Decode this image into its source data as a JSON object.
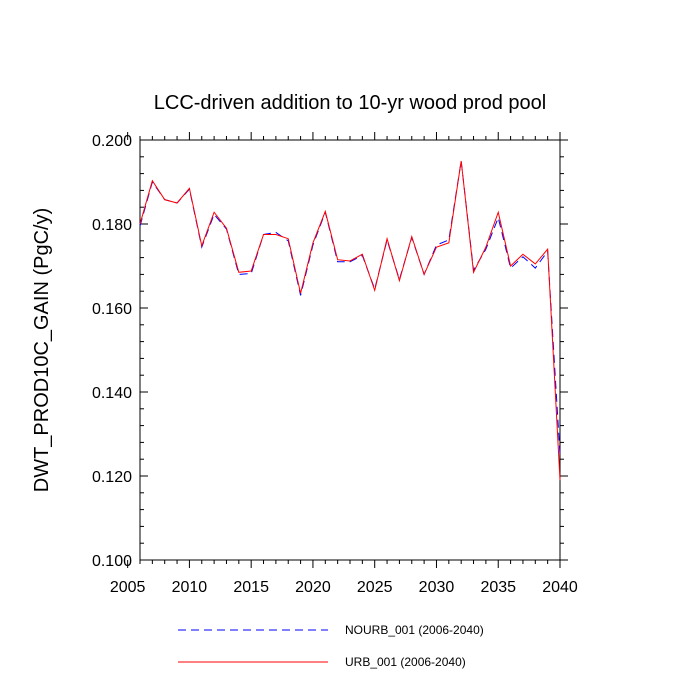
{
  "chart_data": {
    "type": "line",
    "title": "LCC-driven addition to 10-yr wood prod pool",
    "xlabel": "",
    "ylabel": "DWT_PROD10C_GAIN  (PgC/y)",
    "xlim": [
      2006,
      2040
    ],
    "ylim": [
      0.1,
      0.2
    ],
    "grid": false,
    "legend_position": "bottom",
    "x_ticks": [
      2005,
      2010,
      2015,
      2020,
      2025,
      2030,
      2035,
      2040
    ],
    "x_tick_labels": [
      "2005",
      "2010",
      "2015",
      "2020",
      "2025",
      "2030",
      "2035",
      "2040"
    ],
    "y_ticks": [
      0.1,
      0.12,
      0.14,
      0.16,
      0.18,
      0.2
    ],
    "y_tick_labels": [
      "0.100",
      "0.120",
      "0.140",
      "0.160",
      "0.180",
      "0.200"
    ],
    "x": [
      2006,
      2007,
      2008,
      2009,
      2010,
      2011,
      2012,
      2013,
      2014,
      2015,
      2016,
      2017,
      2018,
      2019,
      2020,
      2021,
      2022,
      2023,
      2024,
      2025,
      2026,
      2027,
      2028,
      2029,
      2030,
      2031,
      2032,
      2033,
      2034,
      2035,
      2036,
      2037,
      2038,
      2039,
      2040
    ],
    "series": [
      {
        "name": "NOURB_001 (2006-2040)",
        "color": "#0000ff",
        "dash": "dashed",
        "values": [
          0.1795,
          0.19,
          0.1858,
          0.185,
          0.1883,
          0.1745,
          0.1823,
          0.1788,
          0.168,
          0.1682,
          0.1775,
          0.178,
          0.176,
          0.163,
          0.175,
          0.1828,
          0.171,
          0.171,
          0.1725,
          0.1645,
          0.1762,
          0.1668,
          0.1768,
          0.168,
          0.175,
          0.1762,
          0.195,
          0.169,
          0.174,
          0.1815,
          0.1695,
          0.1722,
          0.1695,
          0.1735,
          0.125
        ]
      },
      {
        "name": "URB_001 (2006-2040)",
        "color": "#ff0000",
        "dash": "solid",
        "values": [
          0.18,
          0.1903,
          0.1858,
          0.185,
          0.1885,
          0.1748,
          0.1828,
          0.179,
          0.1685,
          0.1688,
          0.1775,
          0.1775,
          0.1765,
          0.1635,
          0.1755,
          0.183,
          0.1715,
          0.1712,
          0.1728,
          0.1642,
          0.1765,
          0.1665,
          0.177,
          0.168,
          0.1745,
          0.1755,
          0.195,
          0.1685,
          0.1745,
          0.1828,
          0.17,
          0.1728,
          0.1705,
          0.174,
          0.119
        ]
      }
    ]
  }
}
